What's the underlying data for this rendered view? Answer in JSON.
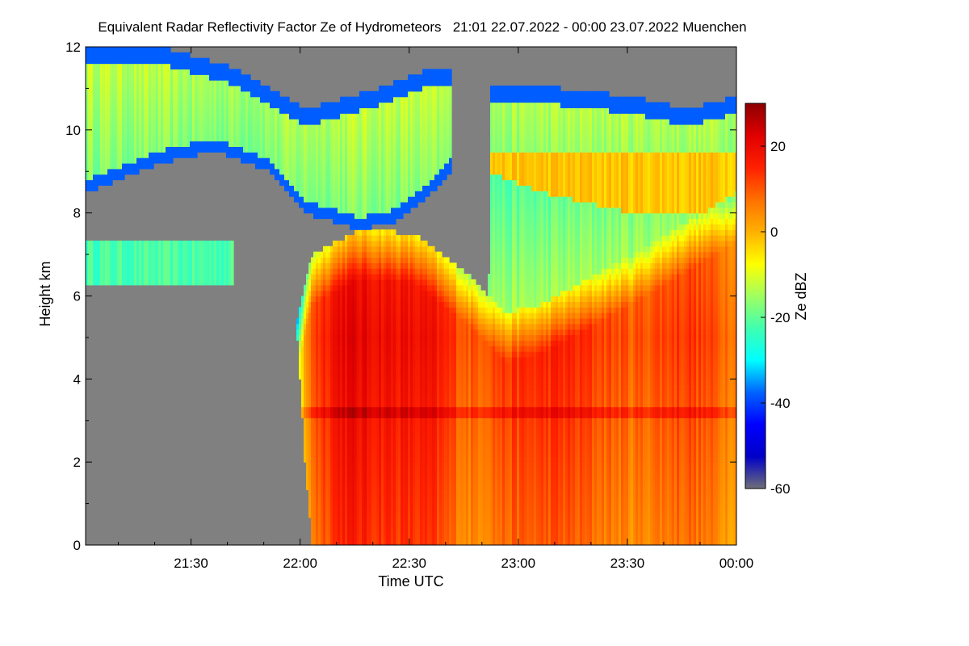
{
  "chart_data": {
    "type": "heatmap",
    "title": "Equivalent Radar Reflectivity Factor Ze of Hydrometeors   21:01 22.07.2022 - 00:00 23.07.2022 Muenchen",
    "xlabel": "Time UTC",
    "ylabel": "Height km",
    "colorbar_label": "Ze dBZ",
    "xlim": [
      "21:01",
      "00:00"
    ],
    "x_ticks": [
      "21:30",
      "22:00",
      "22:30",
      "23:00",
      "23:30",
      "00:00"
    ],
    "ylim": [
      0,
      12
    ],
    "y_ticks": [
      0,
      2,
      4,
      6,
      8,
      10,
      12
    ],
    "colorbar_range": [
      -60,
      30
    ],
    "colorbar_ticks": [
      20,
      0,
      -20,
      -40,
      -60
    ],
    "missing_color": "#808080",
    "colormap": [
      "#6e6e78",
      "#0000c8",
      "#0000ff",
      "#0064ff",
      "#00ffff",
      "#40ffb0",
      "#a0ff60",
      "#ffff00",
      "#ffb000",
      "#ff7000",
      "#ff2000",
      "#e00000",
      "#8c0000"
    ]
  }
}
